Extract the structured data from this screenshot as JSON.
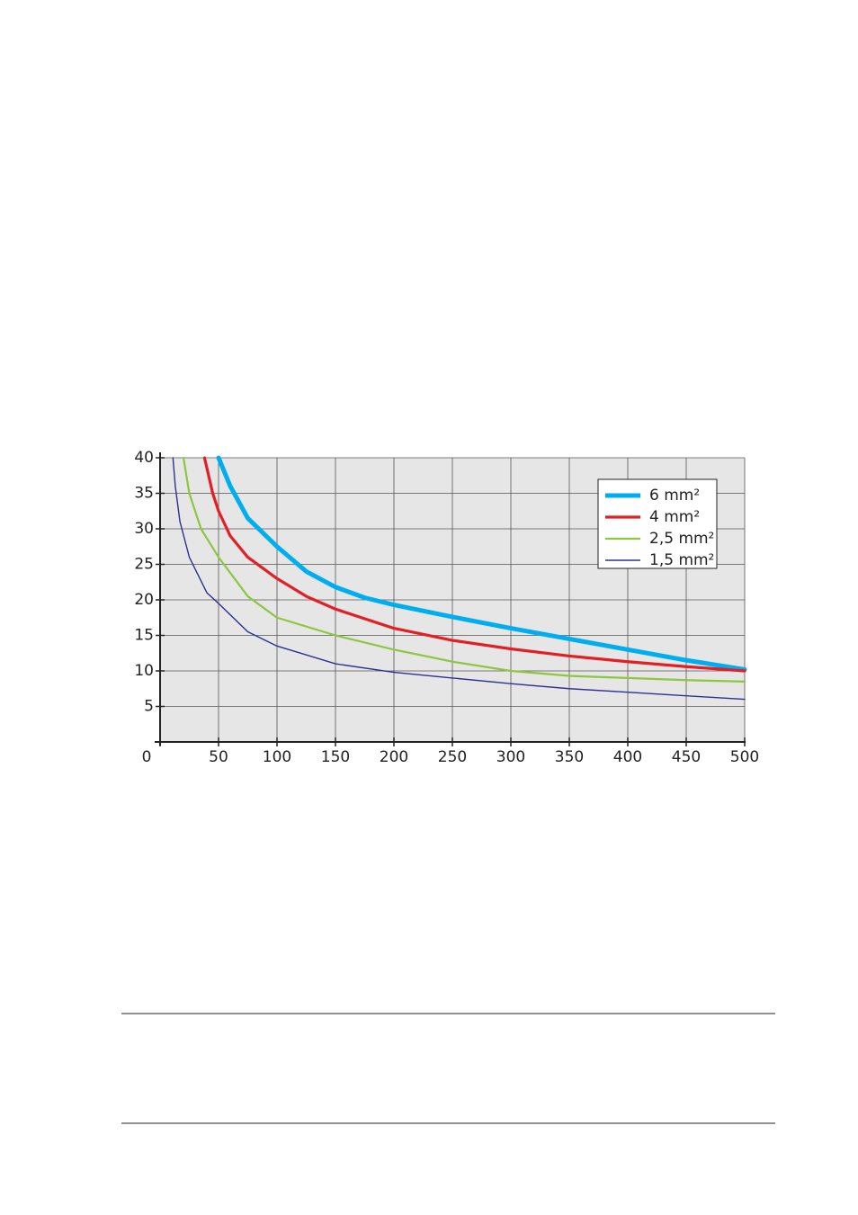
{
  "chart_data": {
    "type": "line",
    "xlim": [
      0,
      500
    ],
    "ylim": [
      0,
      40
    ],
    "xticks": [
      0,
      50,
      100,
      150,
      200,
      250,
      300,
      350,
      400,
      450,
      500
    ],
    "yticks": [
      5,
      10,
      15,
      20,
      25,
      30,
      35,
      40
    ],
    "grid": true,
    "legend": "upper right",
    "series": [
      {
        "name": "6 mm²",
        "color": "#00aeef",
        "x": [
          50,
          60,
          75,
          100,
          125,
          150,
          175,
          200,
          250,
          300,
          350,
          400,
          450,
          500
        ],
        "values": [
          40,
          36,
          31.5,
          27.5,
          24,
          21.8,
          20.3,
          19.3,
          17.6,
          16,
          14.5,
          13,
          11.5,
          10.2
        ]
      },
      {
        "name": "4 mm²",
        "color": "#e31e24",
        "x": [
          38,
          45,
          50,
          60,
          75,
          100,
          125,
          150,
          200,
          250,
          300,
          350,
          400,
          450,
          500
        ],
        "values": [
          40,
          35,
          32.5,
          29,
          26,
          23,
          20.5,
          18.7,
          16,
          14.3,
          13.1,
          12.1,
          11.3,
          10.6,
          10
        ]
      },
      {
        "name": "2,5 mm²",
        "color": "#8dc63f",
        "x": [
          20,
          25,
          35,
          50,
          75,
          100,
          150,
          200,
          250,
          300,
          350,
          400,
          450,
          500
        ],
        "values": [
          40,
          35,
          30,
          26,
          20.5,
          17.5,
          15,
          13,
          11.3,
          10,
          9.3,
          9,
          8.7,
          8.5
        ]
      },
      {
        "name": "1,5 mm²",
        "color": "#2e3192",
        "x": [
          11,
          13,
          17,
          25,
          40,
          50,
          75,
          100,
          150,
          200,
          250,
          300,
          350,
          400,
          450,
          500
        ],
        "values": [
          40,
          36,
          31,
          26,
          21,
          19.5,
          15.5,
          13.5,
          11,
          9.8,
          9,
          8.2,
          7.5,
          7,
          6.5,
          6
        ]
      }
    ]
  }
}
